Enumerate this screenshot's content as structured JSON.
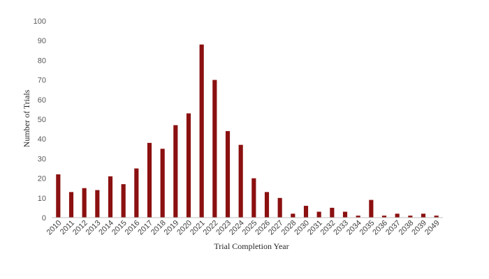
{
  "chart_data": {
    "type": "bar",
    "title": "",
    "xlabel": "Trial Completion Year",
    "ylabel": "Number of Trials",
    "ylim": [
      0,
      100
    ],
    "yticks": [
      0,
      10,
      20,
      30,
      40,
      50,
      60,
      70,
      80,
      90,
      100
    ],
    "grid": false,
    "bar_color": "#8B1010",
    "categories": [
      "2010",
      "2011",
      "2012",
      "2013",
      "2014",
      "2015",
      "2016",
      "2017",
      "2018",
      "2019",
      "2020",
      "2021",
      "2022",
      "2023",
      "2024",
      "2025",
      "2026",
      "2027",
      "2028",
      "2030",
      "2031",
      "2032",
      "2033",
      "2034",
      "2035",
      "2036",
      "2037",
      "2038",
      "2039",
      "2049"
    ],
    "values": [
      22,
      13,
      15,
      14,
      21,
      17,
      25,
      38,
      35,
      47,
      53,
      88,
      70,
      44,
      37,
      20,
      13,
      10,
      2,
      6,
      3,
      5,
      3,
      1,
      9,
      1,
      2,
      1,
      2,
      1
    ]
  }
}
